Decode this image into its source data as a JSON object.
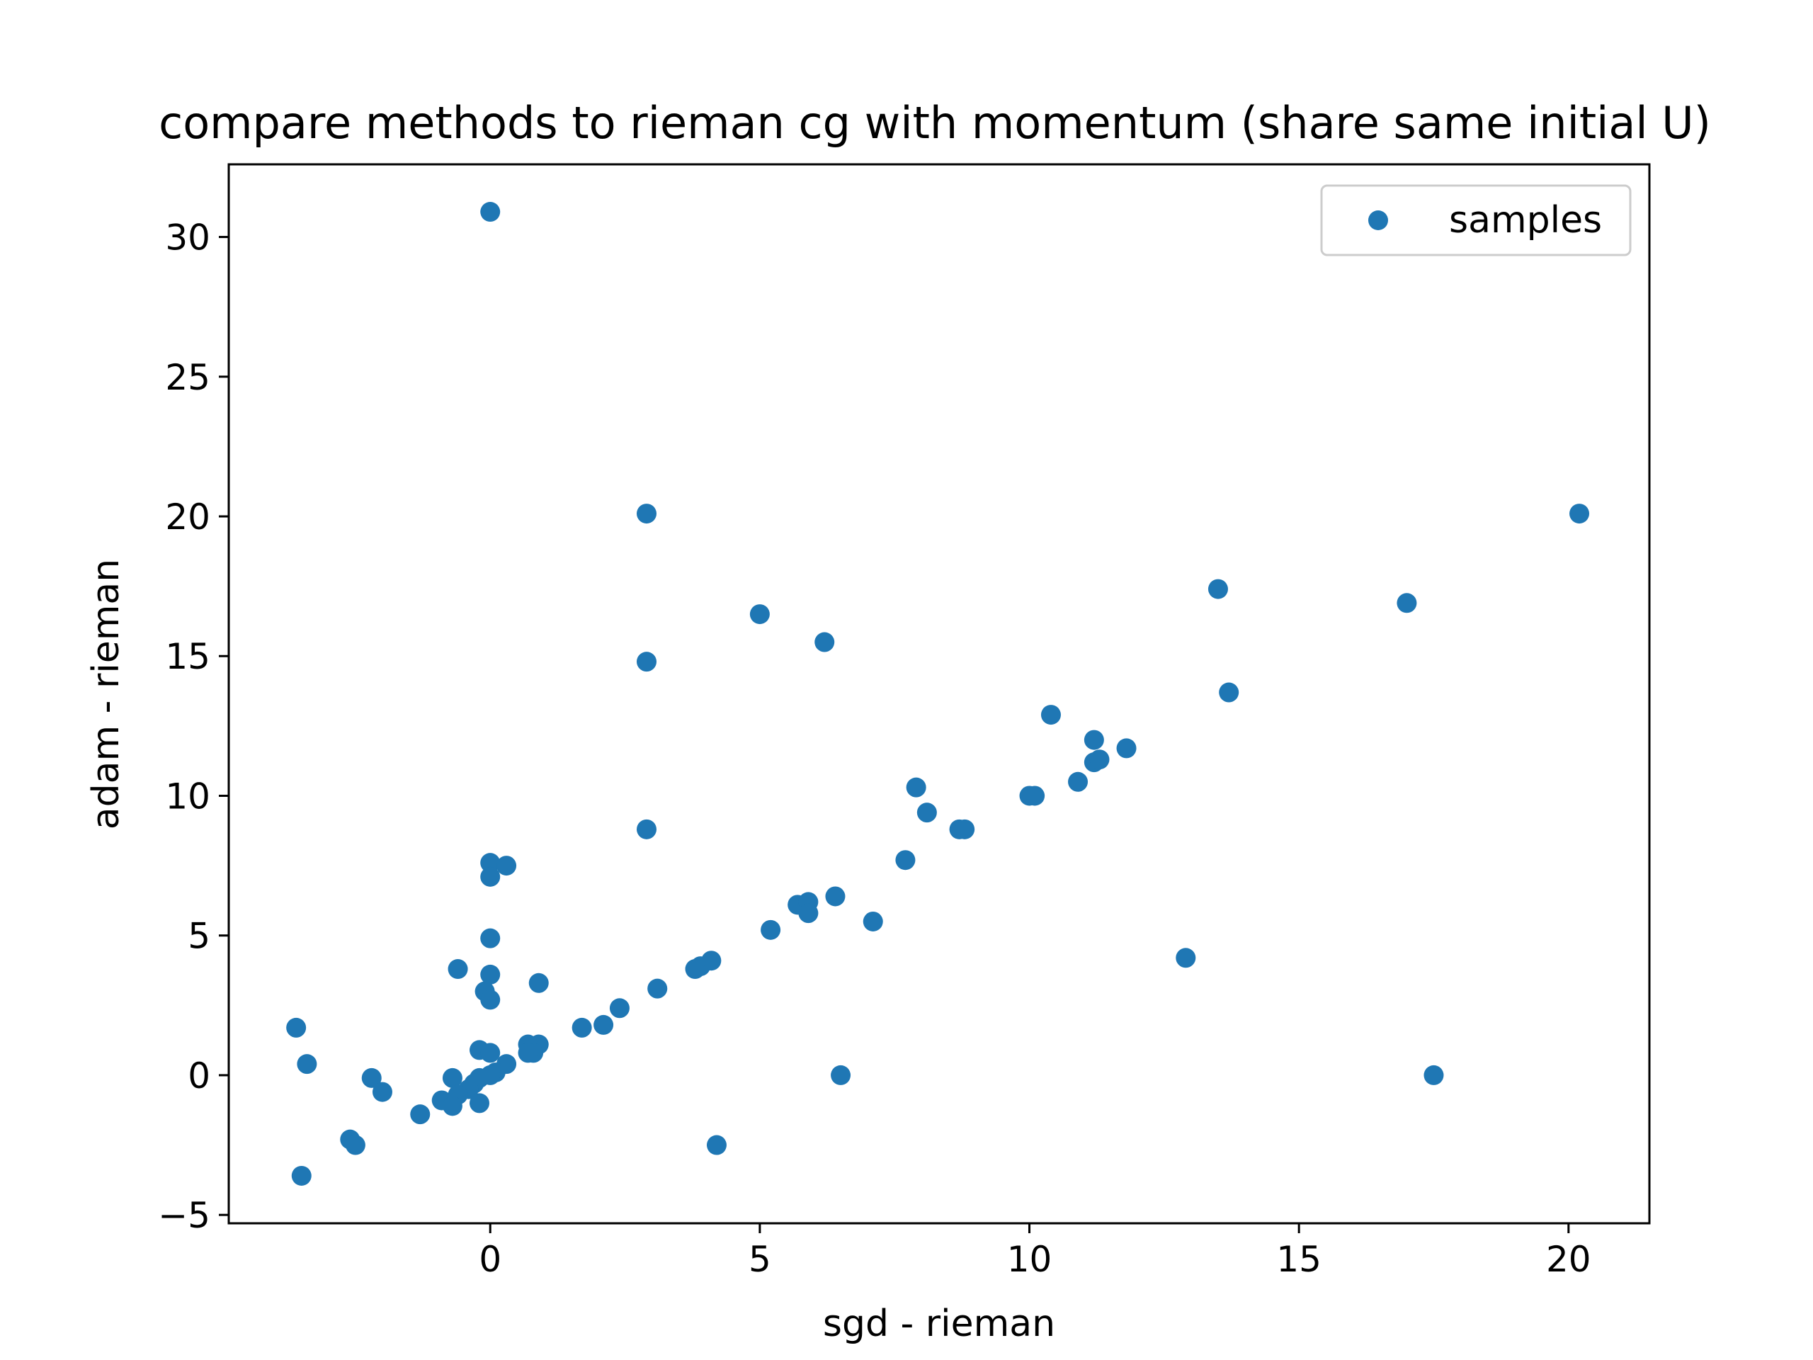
{
  "chart_data": {
    "type": "scatter",
    "title": "compare methods to rieman cg with momentum (share same initial U)",
    "xlabel": "sgd - rieman",
    "ylabel": "adam - rieman",
    "xlim": [
      -4.85,
      21.5
    ],
    "ylim": [
      -5.3,
      32.6
    ],
    "xticks": [
      0,
      5,
      10,
      15,
      20
    ],
    "xtick_labels": [
      "0",
      "5",
      "10",
      "15",
      "20"
    ],
    "yticks": [
      -5,
      0,
      5,
      10,
      15,
      20,
      25,
      30
    ],
    "ytick_labels": [
      "−5",
      "0",
      "5",
      "10",
      "15",
      "20",
      "25",
      "30"
    ],
    "grid": false,
    "legend": {
      "placement": "top-right",
      "entries": [
        "samples"
      ]
    },
    "colors": {
      "series": "#1f77b4",
      "axes": "#000000",
      "legend_border": "#cccccc"
    },
    "series": [
      {
        "name": "samples",
        "points": [
          [
            0.0,
            30.9
          ],
          [
            2.9,
            20.1
          ],
          [
            20.2,
            20.1
          ],
          [
            13.5,
            17.4
          ],
          [
            17.0,
            16.9
          ],
          [
            5.0,
            16.5
          ],
          [
            6.2,
            15.5
          ],
          [
            2.9,
            14.8
          ],
          [
            13.7,
            13.7
          ],
          [
            10.4,
            12.9
          ],
          [
            11.2,
            12.0
          ],
          [
            11.8,
            11.7
          ],
          [
            11.2,
            11.2
          ],
          [
            11.3,
            11.3
          ],
          [
            10.9,
            10.5
          ],
          [
            7.9,
            10.3
          ],
          [
            10.0,
            10.0
          ],
          [
            10.1,
            10.0
          ],
          [
            8.1,
            9.4
          ],
          [
            8.7,
            8.8
          ],
          [
            8.8,
            8.8
          ],
          [
            2.9,
            8.8
          ],
          [
            7.7,
            7.7
          ],
          [
            0.0,
            7.6
          ],
          [
            0.3,
            7.5
          ],
          [
            0.0,
            7.1
          ],
          [
            6.4,
            6.4
          ],
          [
            5.7,
            6.1
          ],
          [
            5.9,
            6.2
          ],
          [
            5.9,
            5.8
          ],
          [
            7.1,
            5.5
          ],
          [
            5.2,
            5.2
          ],
          [
            0.0,
            4.9
          ],
          [
            12.9,
            4.2
          ],
          [
            4.1,
            4.1
          ],
          [
            3.9,
            3.9
          ],
          [
            3.8,
            3.8
          ],
          [
            -0.6,
            3.8
          ],
          [
            0.0,
            3.6
          ],
          [
            0.9,
            3.3
          ],
          [
            3.1,
            3.1
          ],
          [
            -0.1,
            3.0
          ],
          [
            0.0,
            2.7
          ],
          [
            2.4,
            2.4
          ],
          [
            2.1,
            1.8
          ],
          [
            1.7,
            1.7
          ],
          [
            -3.6,
            1.7
          ],
          [
            0.9,
            1.1
          ],
          [
            0.7,
            1.1
          ],
          [
            0.8,
            0.8
          ],
          [
            0.7,
            0.8
          ],
          [
            -0.2,
            0.9
          ],
          [
            0.0,
            0.8
          ],
          [
            0.3,
            0.4
          ],
          [
            -3.4,
            0.4
          ],
          [
            0.1,
            0.1
          ],
          [
            0.0,
            0.0
          ],
          [
            -0.2,
            -0.1
          ],
          [
            -0.7,
            -0.1
          ],
          [
            -2.2,
            -0.1
          ],
          [
            6.5,
            0.0
          ],
          [
            17.5,
            0.0
          ],
          [
            -0.3,
            -0.3
          ],
          [
            -0.4,
            -0.5
          ],
          [
            -0.6,
            -0.7
          ],
          [
            -0.9,
            -0.9
          ],
          [
            -2.0,
            -0.6
          ],
          [
            -0.7,
            -1.1
          ],
          [
            -0.2,
            -1.0
          ],
          [
            -1.3,
            -1.4
          ],
          [
            -2.6,
            -2.3
          ],
          [
            -2.5,
            -2.5
          ],
          [
            4.2,
            -2.5
          ],
          [
            -3.5,
            -3.6
          ]
        ]
      }
    ]
  }
}
